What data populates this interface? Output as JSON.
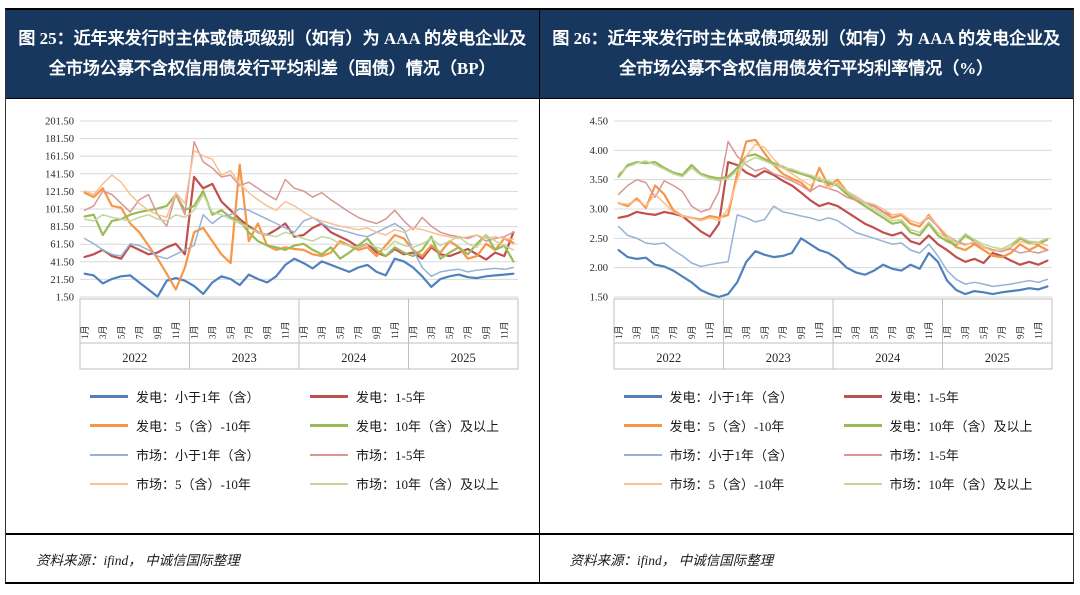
{
  "layout_colors": {
    "title_bg": "#17375E",
    "title_text": "#FFFFFF",
    "gridline": "#D9D9D9",
    "axis_box": "#BFBFBF",
    "tick_text": "#262626"
  },
  "panels": [
    {
      "title": "图 25：近年来发行时主体或债项级别（如有）为 AAA 的发电企业及全市场公募不含权信用债发行平均利差（国债）情况（BP）",
      "source": "资料来源：ifind， 中诚信国际整理",
      "chart_data": {
        "type": "line",
        "unit": "BP",
        "ylim": [
          1.5,
          201.5
        ],
        "yticks": [
          1.5,
          21.5,
          41.5,
          61.5,
          81.5,
          101.5,
          121.5,
          141.5,
          161.5,
          181.5,
          201.5
        ],
        "ytick_labels": [
          "1.50",
          "21.50",
          "41.50",
          "61.50",
          "81.50",
          "101.50",
          "121.50",
          "141.50",
          "161.50",
          "181.50",
          "201.50"
        ],
        "x_years": [
          "2022",
          "2023",
          "2024",
          "2025"
        ],
        "x_month_labels": [
          "1月",
          "3月",
          "5月",
          "7月",
          "9月",
          "11月"
        ],
        "grid": true,
        "legend_position": "bottom",
        "series": [
          {
            "name": "发电：小于1年（含）",
            "color": "#4F81BD",
            "width": 2.2,
            "values": [
              28,
              26,
              17,
              22,
              25,
              26,
              18,
              10,
              2,
              20,
              23,
              20,
              14,
              5,
              18,
              25,
              22,
              15,
              27,
              22,
              18,
              25,
              38,
              45,
              40,
              34,
              42,
              38,
              34,
              30,
              35,
              38,
              30,
              26,
              45,
              42,
              35,
              25,
              13,
              22,
              25,
              27,
              24,
              23,
              25,
              26,
              27,
              28
            ]
          },
          {
            "name": "发电：1-5年",
            "color": "#C0504D",
            "width": 2.2,
            "values": [
              47,
              50,
              55,
              48,
              45,
              60,
              55,
              50,
              52,
              58,
              62,
              50,
              138,
              125,
              130,
              110,
              100,
              90,
              82,
              75,
              72,
              78,
              85,
              70,
              72,
              80,
              85,
              75,
              70,
              65,
              58,
              62,
              52,
              48,
              56,
              50,
              52,
              45,
              58,
              50,
              48,
              52,
              56,
              50,
              44,
              52,
              48,
              75
            ]
          },
          {
            "name": "发电：5（含）-10年",
            "color": "#F79646",
            "width": 2.2,
            "values": [
              120,
              115,
              125,
              105,
              103,
              85,
              75,
              60,
              45,
              28,
              10,
              35,
              75,
              80,
              65,
              50,
              40,
              152,
              65,
              85,
              60,
              55,
              58,
              56,
              55,
              50,
              48,
              52,
              65,
              60,
              55,
              58,
              48,
              60,
              72,
              68,
              55,
              48,
              60,
              52,
              65,
              58,
              45,
              48,
              62,
              55,
              68,
              63
            ]
          },
          {
            "name": "发电：10年（含）及以上",
            "color": "#9BBB59",
            "width": 2.2,
            "values": [
              93,
              95,
              72,
              88,
              90,
              95,
              98,
              100,
              102,
              105,
              118,
              100,
              105,
              122,
              95,
              100,
              92,
              88,
              75,
              65,
              60,
              58,
              55,
              60,
              62,
              55,
              50,
              58,
              45,
              52,
              60,
              68,
              55,
              48,
              58,
              52,
              48,
              55,
              70,
              45,
              52,
              58,
              50,
              62,
              72,
              55,
              60,
              42
            ]
          },
          {
            "name": "市场：小于1年（含）",
            "color": "#95B3D7",
            "width": 1.5,
            "values": [
              68,
              62,
              55,
              50,
              48,
              62,
              60,
              55,
              48,
              45,
              50,
              55,
              60,
              95,
              85,
              93,
              95,
              102,
              100,
              95,
              90,
              85,
              80,
              75,
              88,
              92,
              85,
              80,
              78,
              75,
              72,
              70,
              75,
              80,
              85,
              78,
              55,
              35,
              25,
              30,
              32,
              33,
              30,
              32,
              33,
              34,
              33,
              35
            ]
          },
          {
            "name": "市场：1-5年",
            "color": "#D99694",
            "width": 1.5,
            "values": [
              100,
              105,
              122,
              118,
              108,
              98,
              112,
              118,
              95,
              82,
              118,
              95,
              178,
              155,
              148,
              138,
              140,
              128,
              132,
              125,
              118,
              112,
              135,
              125,
              122,
              115,
              120,
              112,
              105,
              98,
              92,
              88,
              85,
              90,
              100,
              88,
              78,
              92,
              82,
              75,
              72,
              70,
              68,
              72,
              65,
              68,
              70,
              75
            ]
          },
          {
            "name": "市场：5（含）-10年",
            "color": "#FAC090",
            "width": 1.5,
            "values": [
              122,
              118,
              130,
              140,
              132,
              118,
              108,
              100,
              95,
              92,
              120,
              108,
              168,
              162,
              158,
              140,
              145,
              130,
              120,
              112,
              105,
              100,
              110,
              105,
              98,
              92,
              88,
              85,
              82,
              80,
              78,
              80,
              75,
              72,
              78,
              75,
              80,
              78,
              75,
              72,
              70,
              68,
              70,
              72,
              68,
              70,
              68,
              67
            ]
          },
          {
            "name": "市场：10年（含）及以上",
            "color": "#C3D69B",
            "width": 1.5,
            "values": [
              90,
              88,
              95,
              92,
              90,
              88,
              92,
              95,
              90,
              88,
              95,
              92,
              100,
              118,
              98,
              95,
              90,
              85,
              80,
              75,
              72,
              70,
              75,
              72,
              68,
              65,
              70,
              68,
              62,
              60,
              58,
              62,
              58,
              55,
              65,
              60,
              58,
              62,
              68,
              60,
              65,
              70,
              62,
              58,
              72,
              65,
              60,
              55
            ]
          }
        ]
      }
    },
    {
      "title": "图 26：近年来发行时主体或债项级别（如有）为 AAA 的发电企业及全市场公募不含权信用债发行平均利率情况（%）",
      "source": "资料来源：ifind， 中诚信国际整理",
      "chart_data": {
        "type": "line",
        "unit": "%",
        "ylim": [
          1.5,
          4.5
        ],
        "yticks": [
          1.5,
          2.0,
          2.5,
          3.0,
          3.5,
          4.0,
          4.5
        ],
        "ytick_labels": [
          "1.50",
          "2.00",
          "2.50",
          "3.00",
          "3.50",
          "4.00",
          "4.50"
        ],
        "x_years": [
          "2022",
          "2023",
          "2024",
          "2025"
        ],
        "x_month_labels": [
          "1月",
          "3月",
          "5月",
          "7月",
          "9月",
          "11月"
        ],
        "grid": true,
        "legend_position": "bottom",
        "series": [
          {
            "name": "发电：小于1年（含）",
            "color": "#4F81BD",
            "width": 2.2,
            "values": [
              2.3,
              2.18,
              2.15,
              2.17,
              2.05,
              2.02,
              1.95,
              1.85,
              1.75,
              1.62,
              1.55,
              1.5,
              1.55,
              1.75,
              2.1,
              2.28,
              2.22,
              2.18,
              2.2,
              2.25,
              2.5,
              2.4,
              2.3,
              2.25,
              2.15,
              2.0,
              1.92,
              1.88,
              1.95,
              2.05,
              1.98,
              1.95,
              2.05,
              1.98,
              2.25,
              2.1,
              1.78,
              1.62,
              1.55,
              1.6,
              1.58,
              1.55,
              1.58,
              1.6,
              1.62,
              1.65,
              1.63,
              1.68
            ]
          },
          {
            "name": "发电：1-5年",
            "color": "#C0504D",
            "width": 2.2,
            "values": [
              2.85,
              2.88,
              2.95,
              2.92,
              2.9,
              2.95,
              2.92,
              2.88,
              2.75,
              2.62,
              2.53,
              2.75,
              3.8,
              3.75,
              3.62,
              3.55,
              3.65,
              3.58,
              3.48,
              3.4,
              3.28,
              3.15,
              3.05,
              3.1,
              3.05,
              2.95,
              2.85,
              2.75,
              2.68,
              2.6,
              2.55,
              2.6,
              2.45,
              2.4,
              2.55,
              2.4,
              2.3,
              2.18,
              2.1,
              2.15,
              2.08,
              2.25,
              2.2,
              2.12,
              2.05,
              2.1,
              2.05,
              2.12
            ]
          },
          {
            "name": "发电：5（含）-10年",
            "color": "#F79646",
            "width": 2.2,
            "values": [
              3.1,
              3.05,
              3.18,
              3.02,
              3.4,
              3.25,
              2.98,
              2.88,
              2.85,
              2.82,
              2.88,
              2.85,
              2.9,
              3.6,
              4.15,
              4.18,
              3.95,
              3.75,
              3.6,
              3.52,
              3.45,
              3.3,
              3.7,
              3.4,
              3.5,
              3.3,
              3.2,
              3.1,
              3.05,
              2.95,
              2.85,
              2.9,
              2.75,
              2.7,
              2.9,
              2.7,
              2.5,
              2.35,
              2.3,
              2.4,
              2.3,
              2.2,
              2.18,
              2.25,
              2.4,
              2.3,
              2.38,
              2.3
            ]
          },
          {
            "name": "发电：10年（含）及以上",
            "color": "#9BBB59",
            "width": 2.2,
            "values": [
              3.55,
              3.75,
              3.8,
              3.78,
              3.8,
              3.7,
              3.62,
              3.58,
              3.75,
              3.6,
              3.55,
              3.52,
              3.55,
              3.7,
              3.9,
              3.93,
              3.85,
              3.78,
              3.72,
              3.65,
              3.6,
              3.55,
              3.48,
              3.45,
              3.4,
              3.25,
              3.15,
              3.05,
              2.95,
              2.85,
              2.75,
              2.78,
              2.6,
              2.55,
              2.75,
              2.55,
              2.45,
              2.38,
              2.55,
              2.45,
              2.35,
              2.3,
              2.28,
              2.35,
              2.5,
              2.42,
              2.4,
              2.48
            ]
          },
          {
            "name": "市场：小于1年（含）",
            "color": "#95B3D7",
            "width": 1.5,
            "values": [
              2.7,
              2.55,
              2.5,
              2.42,
              2.4,
              2.42,
              2.3,
              2.2,
              2.08,
              2.02,
              2.05,
              2.08,
              2.1,
              2.9,
              2.85,
              2.78,
              2.82,
              3.05,
              2.95,
              2.92,
              2.88,
              2.85,
              2.8,
              2.85,
              2.8,
              2.7,
              2.6,
              2.55,
              2.5,
              2.45,
              2.4,
              2.42,
              2.3,
              2.25,
              2.4,
              2.2,
              1.95,
              1.8,
              1.72,
              1.75,
              1.72,
              1.68,
              1.7,
              1.72,
              1.75,
              1.78,
              1.75,
              1.8
            ]
          },
          {
            "name": "市场：1-5年",
            "color": "#D99694",
            "width": 1.5,
            "values": [
              3.25,
              3.4,
              3.5,
              3.45,
              3.2,
              3.48,
              3.4,
              3.3,
              3.05,
              2.95,
              3.0,
              3.3,
              4.15,
              3.9,
              3.75,
              3.65,
              3.7,
              3.6,
              3.55,
              3.48,
              3.4,
              3.3,
              3.4,
              3.35,
              3.3,
              3.2,
              3.15,
              3.1,
              3.05,
              2.95,
              2.9,
              2.92,
              2.8,
              2.75,
              2.85,
              2.7,
              2.55,
              2.45,
              2.4,
              2.42,
              2.35,
              2.3,
              2.28,
              2.32,
              2.25,
              2.28,
              2.25,
              2.3
            ]
          },
          {
            "name": "市场：5（含）-10年",
            "color": "#FAC090",
            "width": 1.5,
            "values": [
              3.1,
              3.08,
              3.15,
              3.05,
              3.25,
              3.1,
              2.95,
              2.88,
              2.85,
              2.8,
              2.85,
              2.8,
              3.0,
              3.5,
              3.9,
              4.1,
              4.05,
              3.85,
              3.7,
              3.6,
              3.5,
              3.4,
              3.55,
              3.35,
              3.45,
              3.3,
              3.22,
              3.12,
              3.08,
              3.0,
              2.9,
              2.92,
              2.8,
              2.75,
              2.88,
              2.72,
              2.55,
              2.42,
              2.38,
              2.45,
              2.35,
              2.28,
              2.3,
              2.35,
              2.45,
              2.4,
              2.42,
              2.38
            ]
          },
          {
            "name": "市场：10年（含）及以上",
            "color": "#C3D69B",
            "width": 1.5,
            "values": [
              3.6,
              3.72,
              3.78,
              3.82,
              3.75,
              3.68,
              3.6,
              3.55,
              3.7,
              3.58,
              3.52,
              3.48,
              3.52,
              3.65,
              3.8,
              3.88,
              3.82,
              3.75,
              3.7,
              3.68,
              3.62,
              3.58,
              3.52,
              3.48,
              3.42,
              3.3,
              3.2,
              3.1,
              3.0,
              2.9,
              2.8,
              2.82,
              2.65,
              2.6,
              2.78,
              2.6,
              2.5,
              2.42,
              2.58,
              2.48,
              2.4,
              2.35,
              2.32,
              2.4,
              2.52,
              2.45,
              2.44,
              2.5
            ]
          }
        ]
      }
    }
  ]
}
